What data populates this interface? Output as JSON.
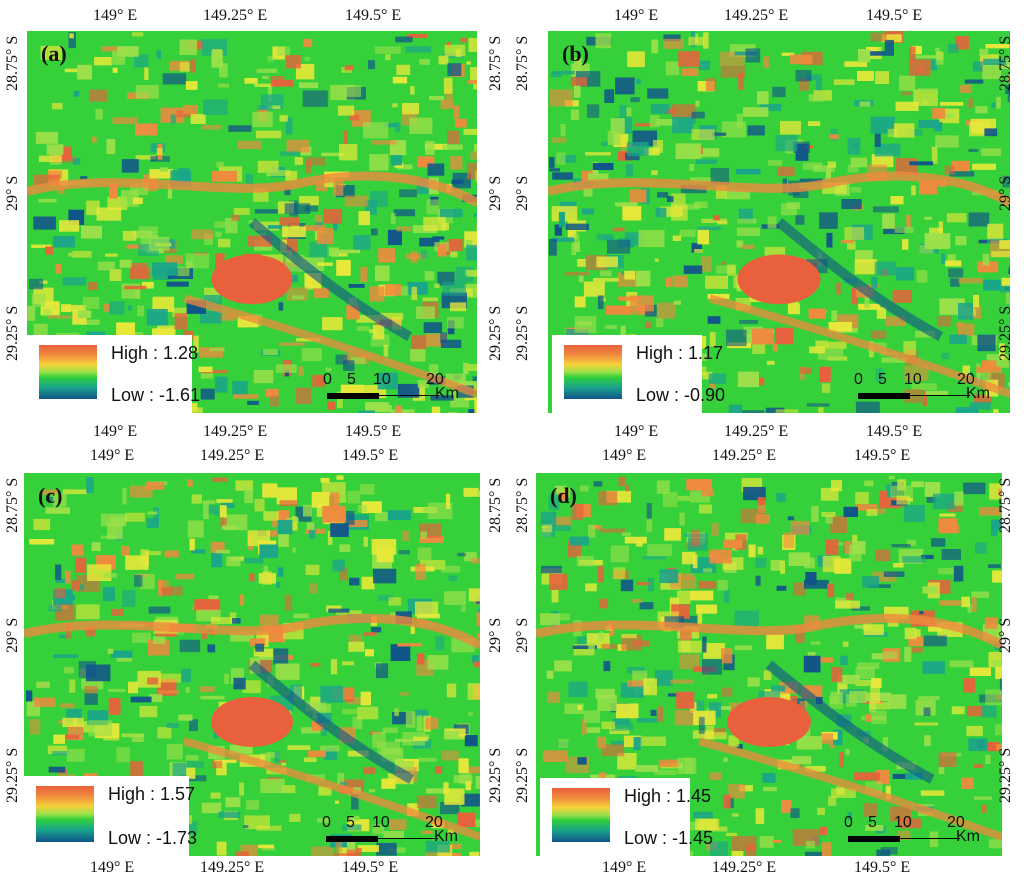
{
  "panels": [
    {
      "tag": "(a)",
      "legend": {
        "high": "High : 1.28",
        "low": "Low : -1.61"
      },
      "seed": 11
    },
    {
      "tag": "(b)",
      "legend": {
        "high": "High : 1.17",
        "low": "Low : -0.90"
      },
      "seed": 23
    },
    {
      "tag": "(c)",
      "legend": {
        "high": "High : 1.57",
        "low": "Low : -1.73"
      },
      "seed": 37
    },
    {
      "tag": "(d)",
      "legend": {
        "high": "High : 1.45",
        "low": "Low : -1.45"
      },
      "seed": 53
    }
  ],
  "axes": {
    "lon_ticks": [
      "149° E",
      "149.25° E",
      "149.5° E"
    ],
    "lat_ticks": [
      "28.75° S",
      "29° S",
      "29.25° S"
    ]
  },
  "scale_bar": {
    "ticks": [
      "0",
      "5",
      "10",
      "20"
    ],
    "unit": "Km"
  },
  "colors": {
    "green": "#36d13a",
    "light_green": "#9be04a",
    "yellow": "#e8e83a",
    "orange": "#f08a3e",
    "red": "#e8613c",
    "teal": "#1aa58a",
    "blue": "#11548a"
  }
}
